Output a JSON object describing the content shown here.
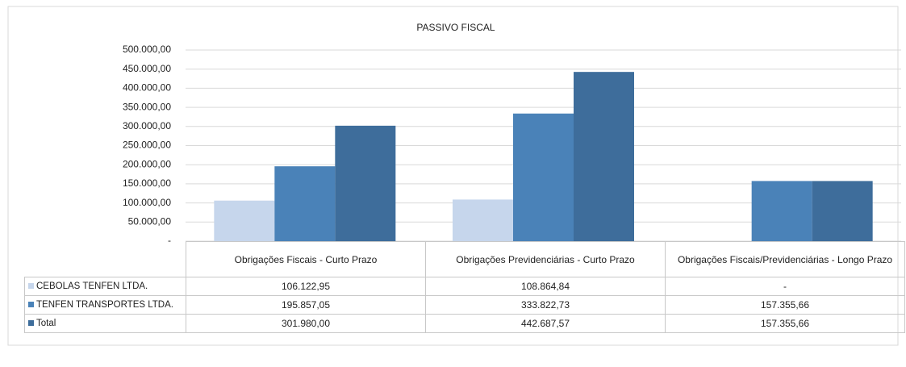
{
  "chart_data": {
    "type": "bar",
    "title": "PASSIVO FISCAL",
    "categories": [
      "Obrigações Fiscais - Curto Prazo",
      "Obrigações Previdenciárias - Curto Prazo",
      "Obrigações Fiscais/Previdenciárias - Longo Prazo"
    ],
    "series": [
      {
        "name": "CEBOLAS TENFEN LTDA.",
        "color": "#c6d6ec",
        "values": [
          106122.95,
          108864.84,
          0
        ],
        "value_labels": [
          "106.122,95",
          "108.864,84",
          "-"
        ]
      },
      {
        "name": "TENFEN TRANSPORTES LTDA.",
        "color": "#4a82b8",
        "values": [
          195857.05,
          333822.73,
          157355.66
        ],
        "value_labels": [
          "195.857,05",
          "333.822,73",
          "157.355,66"
        ]
      },
      {
        "name": "Total",
        "color": "#3e6d9b",
        "values": [
          301980.0,
          442687.57,
          157355.66
        ],
        "value_labels": [
          "301.980,00",
          "442.687,57",
          "157.355,66"
        ]
      }
    ],
    "ylim": [
      0,
      500000
    ],
    "yticks": [
      {
        "value": 0,
        "label": "-"
      },
      {
        "value": 50000,
        "label": "50.000,00"
      },
      {
        "value": 100000,
        "label": "100.000,00"
      },
      {
        "value": 150000,
        "label": "150.000,00"
      },
      {
        "value": 200000,
        "label": "200.000,00"
      },
      {
        "value": 250000,
        "label": "250.000,00"
      },
      {
        "value": 300000,
        "label": "300.000,00"
      },
      {
        "value": 350000,
        "label": "350.000,00"
      },
      {
        "value": 400000,
        "label": "400.000,00"
      },
      {
        "value": 450000,
        "label": "450.000,00"
      },
      {
        "value": 500000,
        "label": "500.000,00"
      }
    ],
    "grid": true
  }
}
